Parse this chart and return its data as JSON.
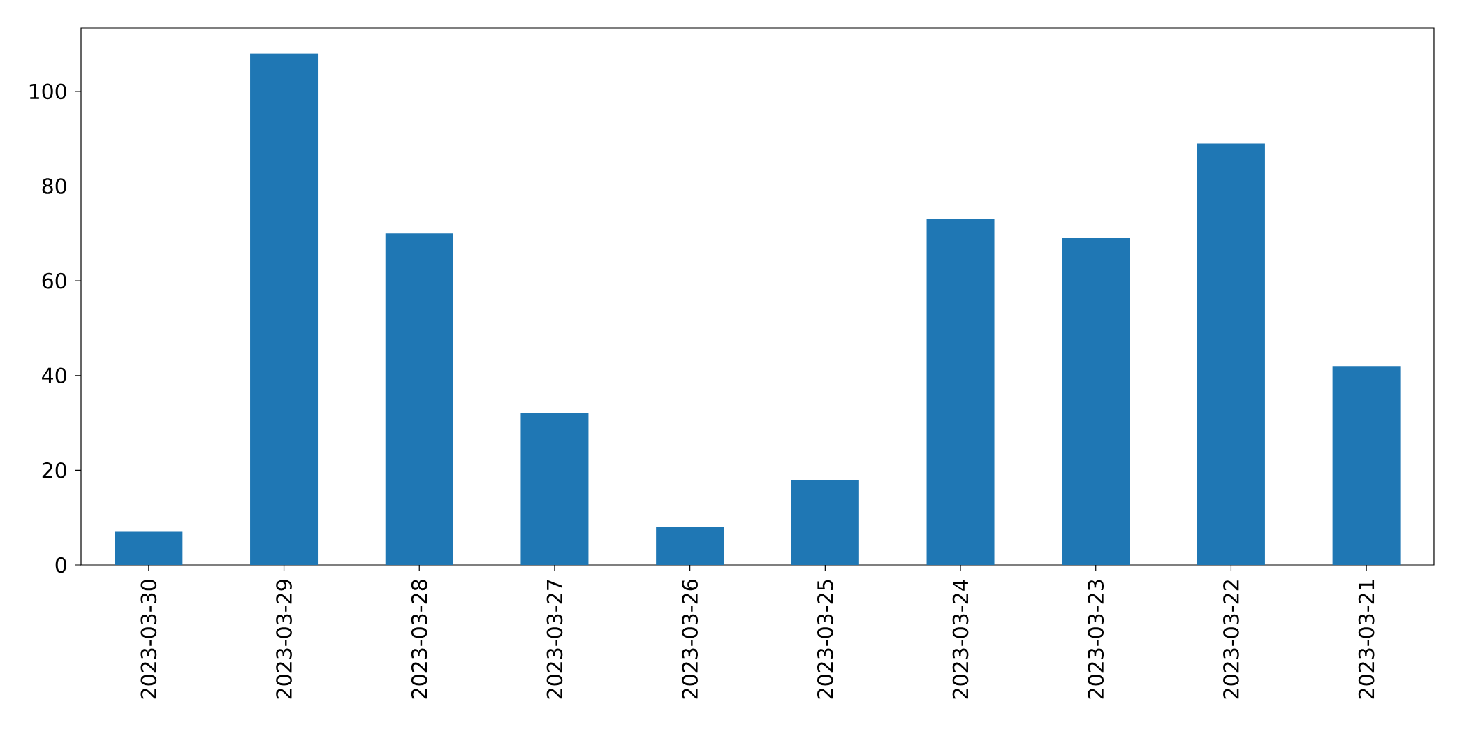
{
  "chart_data": {
    "type": "bar",
    "categories": [
      "2023-03-30",
      "2023-03-29",
      "2023-03-28",
      "2023-03-27",
      "2023-03-26",
      "2023-03-25",
      "2023-03-24",
      "2023-03-23",
      "2023-03-22",
      "2023-03-21"
    ],
    "values": [
      7,
      108,
      70,
      32,
      8,
      18,
      73,
      69,
      89,
      42
    ],
    "color": "#1f77b4",
    "ylim": [
      0,
      113.4
    ],
    "yticks": [
      0,
      20,
      40,
      60,
      80,
      100
    ]
  }
}
